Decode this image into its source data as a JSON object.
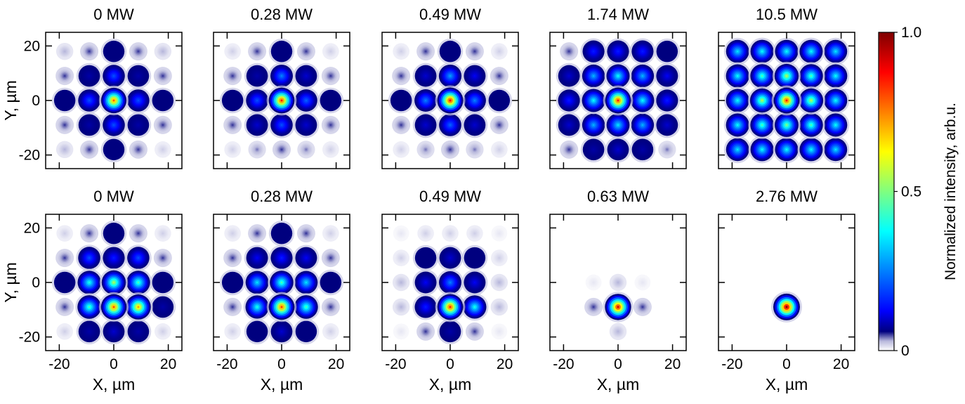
{
  "chart_data": {
    "type": "heatmap",
    "colormap": "jet (dark blue to red)",
    "x_ticks": [
      -20,
      0,
      20
    ],
    "y_ticks": [
      20,
      0,
      -20
    ],
    "x_range": [
      -25,
      25
    ],
    "y_range": [
      -25,
      25
    ],
    "x_label": "X, µm",
    "y_label": "Y, µm",
    "colorbar": {
      "label": "Normalized intensity, arb.u.",
      "ticks": [
        "1.0",
        "0.5",
        "0"
      ],
      "range": [
        0,
        1
      ]
    },
    "lattice_positions_um": [
      -18,
      -9,
      0,
      9,
      18
    ],
    "rows": [
      {
        "panels": [
          {
            "title": "0 MW",
            "intensity": [
              [
                0.03,
                0.05,
                0.06,
                0.05,
                0.03
              ],
              [
                0.05,
                0.08,
                0.2,
                0.08,
                0.05
              ],
              [
                0.06,
                0.2,
                0.78,
                0.2,
                0.06
              ],
              [
                0.05,
                0.08,
                0.2,
                0.08,
                0.05
              ],
              [
                0.03,
                0.05,
                0.06,
                0.05,
                0.02
              ]
            ]
          },
          {
            "title": "0.28 MW",
            "intensity": [
              [
                0.02,
                0.05,
                0.06,
                0.05,
                0.02
              ],
              [
                0.05,
                0.08,
                0.25,
                0.1,
                0.05
              ],
              [
                0.06,
                0.2,
                0.85,
                0.22,
                0.06
              ],
              [
                0.05,
                0.1,
                0.2,
                0.1,
                0.05
              ],
              [
                0.02,
                0.04,
                0.05,
                0.04,
                0.02
              ]
            ]
          },
          {
            "title": "0.49 MW",
            "intensity": [
              [
                0.02,
                0.05,
                0.06,
                0.05,
                0.02
              ],
              [
                0.05,
                0.1,
                0.28,
                0.12,
                0.05
              ],
              [
                0.06,
                0.25,
                0.88,
                0.25,
                0.06
              ],
              [
                0.05,
                0.1,
                0.22,
                0.1,
                0.05
              ],
              [
                0.02,
                0.04,
                0.05,
                0.04,
                0.02
              ]
            ]
          },
          {
            "title": "1.74 MW",
            "intensity": [
              [
                0.05,
                0.15,
                0.15,
                0.15,
                0.06
              ],
              [
                0.1,
                0.3,
                0.38,
                0.3,
                0.12
              ],
              [
                0.15,
                0.38,
                0.85,
                0.38,
                0.15
              ],
              [
                0.1,
                0.3,
                0.35,
                0.3,
                0.1
              ],
              [
                0.05,
                0.08,
                0.1,
                0.08,
                0.04
              ]
            ]
          },
          {
            "title": "10.5 MW",
            "intensity": [
              [
                0.35,
                0.38,
                0.38,
                0.38,
                0.35
              ],
              [
                0.38,
                0.45,
                0.55,
                0.45,
                0.38
              ],
              [
                0.38,
                0.55,
                0.85,
                0.55,
                0.38
              ],
              [
                0.38,
                0.45,
                0.5,
                0.45,
                0.38
              ],
              [
                0.35,
                0.38,
                0.38,
                0.38,
                0.35
              ]
            ]
          }
        ]
      },
      {
        "panels": [
          {
            "title": "0 MW",
            "intensity": [
              [
                0.02,
                0.05,
                0.06,
                0.05,
                0.02
              ],
              [
                0.05,
                0.2,
                0.15,
                0.2,
                0.05
              ],
              [
                0.06,
                0.4,
                0.55,
                0.45,
                0.06
              ],
              [
                0.05,
                0.45,
                0.8,
                0.72,
                0.08
              ],
              [
                0.02,
                0.08,
                0.1,
                0.08,
                0.02
              ]
            ]
          },
          {
            "title": "0.28 MW",
            "intensity": [
              [
                0.02,
                0.05,
                0.06,
                0.05,
                0.02
              ],
              [
                0.05,
                0.12,
                0.15,
                0.12,
                0.05
              ],
              [
                0.06,
                0.35,
                0.45,
                0.35,
                0.06
              ],
              [
                0.05,
                0.4,
                0.82,
                0.45,
                0.05
              ],
              [
                0.02,
                0.06,
                0.1,
                0.06,
                0.02
              ]
            ]
          },
          {
            "title": "0.49 MW",
            "intensity": [
              [
                0.01,
                0.02,
                0.02,
                0.02,
                0.01
              ],
              [
                0.02,
                0.06,
                0.1,
                0.06,
                0.02
              ],
              [
                0.03,
                0.12,
                0.25,
                0.12,
                0.03
              ],
              [
                0.03,
                0.15,
                0.85,
                0.4,
                0.03
              ],
              [
                0.01,
                0.05,
                0.08,
                0.05,
                0.01
              ]
            ]
          },
          {
            "title": "0.63 MW",
            "intensity": [
              [
                0,
                0,
                0,
                0,
                0
              ],
              [
                0,
                0,
                0,
                0,
                0
              ],
              [
                0,
                0.01,
                0.03,
                0.01,
                0
              ],
              [
                0,
                0.05,
                0.92,
                0.05,
                0
              ],
              [
                0,
                0,
                0.03,
                0,
                0
              ]
            ]
          },
          {
            "title": "2.76 MW",
            "intensity": [
              [
                0,
                0,
                0,
                0,
                0
              ],
              [
                0,
                0,
                0,
                0,
                0
              ],
              [
                0,
                0,
                0,
                0,
                0
              ],
              [
                0,
                0,
                1.0,
                0,
                0
              ],
              [
                0,
                0,
                0,
                0,
                0
              ]
            ]
          }
        ]
      }
    ]
  }
}
